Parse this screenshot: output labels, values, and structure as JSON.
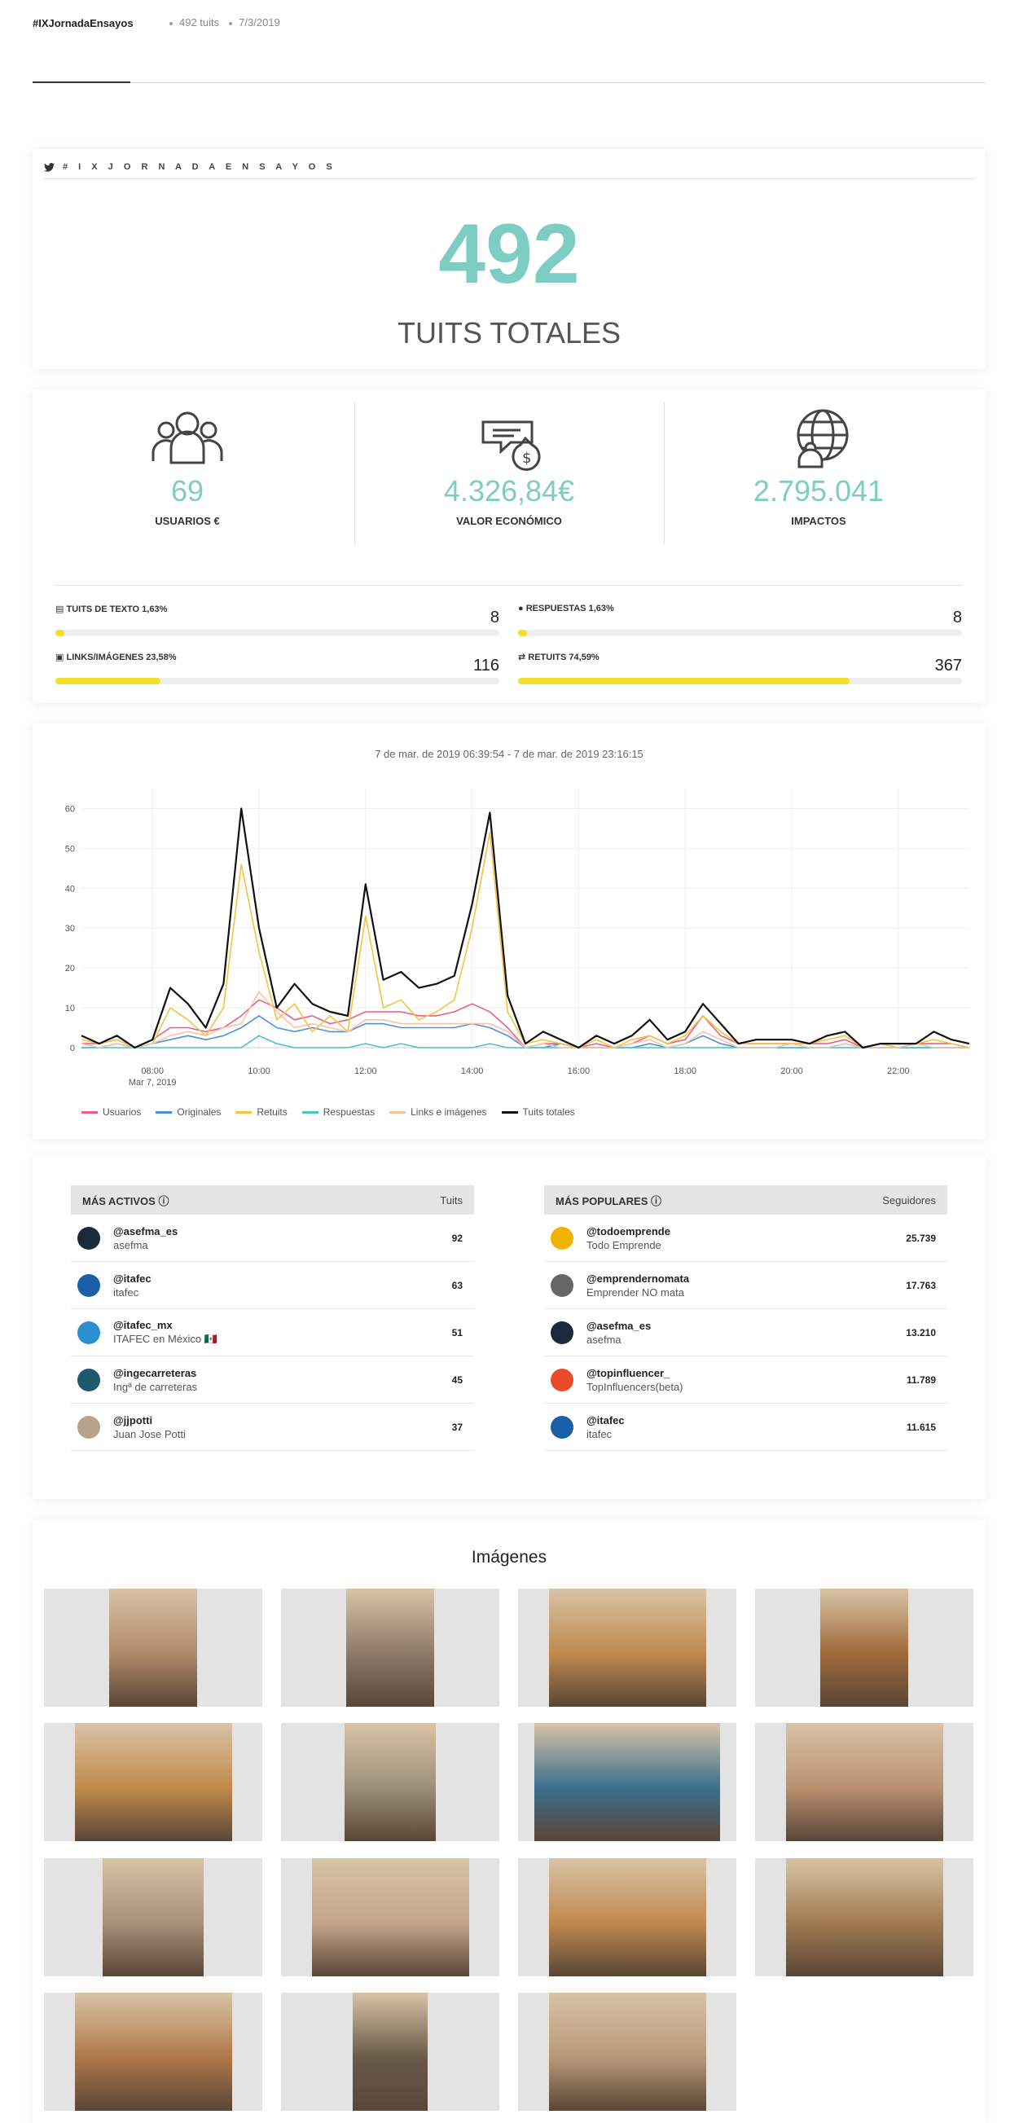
{
  "header": {
    "hashtag": "#IXJornadaEnsayos",
    "tweets": "492 tuits",
    "date": "7/3/2019"
  },
  "total": {
    "tag": "# I X J O R N A D A E N S A Y O S",
    "value": "492",
    "label": "TUITS TOTALES"
  },
  "stats": [
    {
      "value": "69",
      "label": "USUARIOS €",
      "icon": "users-icon"
    },
    {
      "value": "4.326,84€",
      "label": "VALOR ECONÓMICO",
      "icon": "money-icon"
    },
    {
      "value": "2.795.041",
      "label": "IMPACTOS",
      "icon": "globe-users-icon"
    }
  ],
  "bars": [
    {
      "label": "TUITS DE TEXTO",
      "pct": "1,63%",
      "count": "8",
      "fraction": 0.0163,
      "icon": "file-text-icon"
    },
    {
      "label": "RESPUESTAS",
      "pct": "1,63%",
      "count": "8",
      "fraction": 0.0163,
      "icon": "comments-icon"
    },
    {
      "label": "LINKS/IMÁGENES",
      "pct": "23,58%",
      "count": "116",
      "fraction": 0.2358,
      "icon": "image-icon"
    },
    {
      "label": "RETUITS",
      "pct": "74,59%",
      "count": "367",
      "fraction": 0.7459,
      "icon": "retweet-icon"
    }
  ],
  "chart_caption": "7 de mar. de 2019 06:39:54 - 7 de mar. de 2019 23:16:15",
  "chart_data": {
    "type": "line",
    "x": [
      "06:40",
      "07:00",
      "07:20",
      "07:40",
      "08:00",
      "08:20",
      "08:40",
      "09:00",
      "09:20",
      "09:40",
      "10:00",
      "10:20",
      "10:40",
      "11:00",
      "11:20",
      "11:40",
      "12:00",
      "12:20",
      "12:40",
      "13:00",
      "13:20",
      "13:40",
      "14:00",
      "14:20",
      "14:40",
      "15:00",
      "15:20",
      "15:40",
      "16:00",
      "16:20",
      "16:40",
      "17:00",
      "17:20",
      "17:40",
      "18:00",
      "18:20",
      "18:40",
      "19:00",
      "19:20",
      "19:40",
      "20:00",
      "20:20",
      "20:40",
      "21:00",
      "21:20",
      "21:40",
      "22:00",
      "22:20",
      "22:40",
      "23:00",
      "23:20"
    ],
    "xticks": [
      "08:00",
      "10:00",
      "12:00",
      "14:00",
      "16:00",
      "18:00",
      "20:00",
      "22:00"
    ],
    "xsub": "Mar 7, 2019",
    "yticks": [
      "0",
      "10",
      "20",
      "30",
      "40",
      "50",
      "60"
    ],
    "ylim": [
      0,
      65
    ],
    "series": [
      {
        "name": "Usuarios",
        "color": "#e8608a",
        "values": [
          1,
          1,
          2,
          0,
          2,
          5,
          5,
          4,
          5,
          8,
          12,
          10,
          7,
          8,
          6,
          7,
          9,
          9,
          9,
          8,
          8,
          9,
          11,
          9,
          5,
          0,
          1,
          1,
          0,
          1,
          0,
          1,
          3,
          1,
          2,
          8,
          3,
          1,
          1,
          1,
          1,
          1,
          1,
          2,
          0,
          1,
          0,
          1,
          1,
          1,
          0
        ]
      },
      {
        "name": "Originales",
        "color": "#4a90d9",
        "values": [
          0,
          0,
          1,
          0,
          1,
          2,
          3,
          2,
          3,
          5,
          8,
          5,
          4,
          5,
          4,
          4,
          6,
          6,
          5,
          5,
          5,
          5,
          6,
          5,
          3,
          0,
          0,
          1,
          0,
          0,
          0,
          0,
          1,
          0,
          1,
          3,
          1,
          0,
          0,
          0,
          0,
          0,
          0,
          1,
          0,
          0,
          0,
          0,
          0,
          0,
          0
        ]
      },
      {
        "name": "Retuits",
        "color": "#f5c242",
        "values": [
          2,
          1,
          2,
          0,
          1,
          10,
          7,
          3,
          10,
          46,
          24,
          7,
          11,
          4,
          8,
          4,
          33,
          10,
          12,
          7,
          9,
          12,
          30,
          54,
          9,
          1,
          2,
          1,
          0,
          2,
          0,
          2,
          3,
          1,
          3,
          8,
          4,
          1,
          1,
          1,
          1,
          1,
          2,
          3,
          0,
          1,
          0,
          1,
          2,
          1,
          0
        ]
      },
      {
        "name": "Respuestas",
        "color": "#49c2c9",
        "values": [
          0,
          0,
          0,
          0,
          0,
          0,
          0,
          0,
          0,
          0,
          3,
          1,
          0,
          0,
          0,
          0,
          1,
          0,
          1,
          0,
          0,
          0,
          0,
          1,
          0,
          0,
          0,
          0,
          0,
          0,
          0,
          0,
          0,
          0,
          0,
          0,
          0,
          0,
          0,
          0,
          0,
          0,
          0,
          0,
          0,
          0,
          0,
          0,
          0,
          0,
          0
        ]
      },
      {
        "name": "Links e imágenes",
        "color": "#f7c3a3",
        "values": [
          1,
          0,
          1,
          0,
          1,
          3,
          4,
          3,
          5,
          6,
          14,
          9,
          5,
          6,
          5,
          4,
          7,
          7,
          6,
          6,
          6,
          6,
          6,
          6,
          4,
          0,
          1,
          0,
          0,
          0,
          0,
          1,
          2,
          0,
          1,
          4,
          2,
          0,
          0,
          0,
          1,
          0,
          0,
          1,
          0,
          0,
          0,
          1,
          0,
          0,
          0
        ]
      },
      {
        "name": "Tuits totales",
        "color": "#111111",
        "values": [
          3,
          1,
          3,
          0,
          2,
          15,
          11,
          5,
          16,
          60,
          30,
          10,
          16,
          11,
          9,
          8,
          41,
          17,
          19,
          15,
          16,
          18,
          36,
          59,
          13,
          1,
          4,
          2,
          0,
          3,
          1,
          3,
          7,
          2,
          4,
          11,
          6,
          1,
          2,
          2,
          2,
          1,
          3,
          4,
          0,
          1,
          1,
          1,
          4,
          2,
          1
        ]
      }
    ]
  },
  "active": {
    "title": "MÁS ACTIVOS",
    "col": "Tuits",
    "rows": [
      {
        "handle": "@asefma_es",
        "name": "asefma",
        "count": "92",
        "color": "#1a2a3a"
      },
      {
        "handle": "@itafec",
        "name": "itafec",
        "count": "63",
        "color": "#1b5fa8"
      },
      {
        "handle": "@itafec_mx",
        "name": "ITAFEC en México 🇲🇽",
        "count": "51",
        "color": "#2d8fd0"
      },
      {
        "handle": "@ingecarreteras",
        "name": "Ingª de carreteras",
        "count": "45",
        "color": "#1d5a6e"
      },
      {
        "handle": "@jjpotti",
        "name": "Juan Jose Potti",
        "count": "37",
        "color": "#b8a38a"
      }
    ]
  },
  "popular": {
    "title": "MÁS POPULARES",
    "col": "Seguidores",
    "rows": [
      {
        "handle": "@todoemprende",
        "name": "Todo Emprende",
        "count": "25.739",
        "color": "#f0b400"
      },
      {
        "handle": "@emprendernomata",
        "name": "Emprender NO mata",
        "count": "17.763",
        "color": "#666666"
      },
      {
        "handle": "@asefma_es",
        "name": "asefma",
        "count": "13.210",
        "color": "#1a2a3a"
      },
      {
        "handle": "@topinfluencer_",
        "name": "TopInfluencers(beta)",
        "count": "11.789",
        "color": "#e84b2a"
      },
      {
        "handle": "@itafec",
        "name": "itafec",
        "count": "11.615",
        "color": "#1b5fa8"
      }
    ]
  },
  "images_title": "Imágenes"
}
